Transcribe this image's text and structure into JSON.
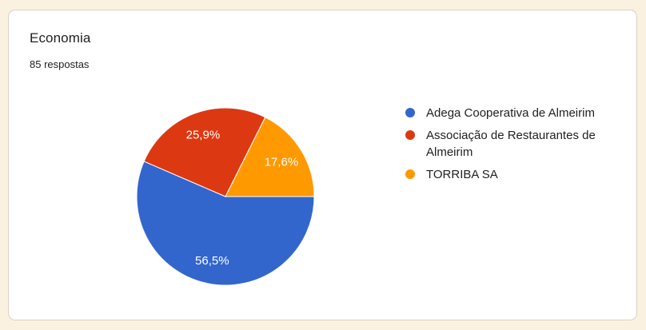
{
  "page": {
    "background_color": "#faf1e1",
    "card_background": "#ffffff",
    "card_border_color": "#d9d3c6"
  },
  "card": {
    "title": "Economia",
    "subtitle": "85 respostas"
  },
  "chart_data": {
    "type": "pie",
    "title": "Economia",
    "subtitle": "85 respostas",
    "total_responses": 85,
    "legend_position": "right",
    "start_angle_deg": 0,
    "direction": "clockwise",
    "slice_label_color": "#ffffff",
    "slice_border_color": "#ffffff",
    "slices": [
      {
        "label": "Adega Cooperativa de Almeirim",
        "value": 56.5,
        "display": "56,5%",
        "color": "#3366cc"
      },
      {
        "label": "Associação de Restaurantes de Almeirim",
        "value": 25.9,
        "display": "25,9%",
        "color": "#dc3912"
      },
      {
        "label": "TORRIBA SA",
        "value": 17.6,
        "display": "17,6%",
        "color": "#ff9900"
      }
    ]
  }
}
